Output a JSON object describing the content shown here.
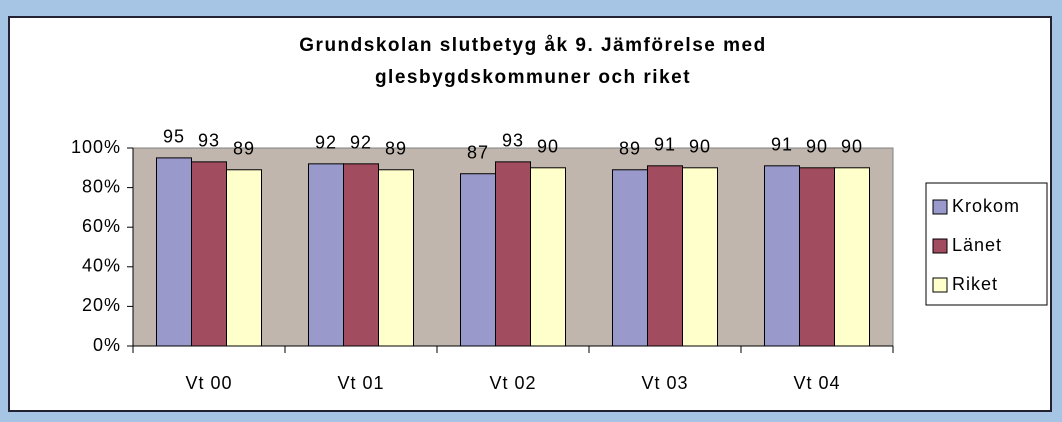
{
  "chart_data": {
    "type": "bar",
    "title_lines": [
      "Grundskolan slutbetyg åk 9. Jämförelse med",
      "glesbygdskommuner och riket"
    ],
    "categories": [
      "Vt 00",
      "Vt 01",
      "Vt 02",
      "Vt 03",
      "Vt 04"
    ],
    "series": [
      {
        "name": "Krokom",
        "color": "#9999cc",
        "values": [
          95,
          92,
          87,
          89,
          91
        ]
      },
      {
        "name": "Länet",
        "color": "#a24d5f",
        "values": [
          93,
          92,
          93,
          91,
          90
        ]
      },
      {
        "name": "Riket",
        "color": "#ffffcc",
        "values": [
          89,
          89,
          90,
          90,
          90
        ]
      }
    ],
    "ylim": [
      0,
      100
    ],
    "yticks": [
      {
        "value": 0,
        "label": "0%"
      },
      {
        "value": 20,
        "label": "20%"
      },
      {
        "value": 40,
        "label": "40%"
      },
      {
        "value": 60,
        "label": "60%"
      },
      {
        "value": 80,
        "label": "80%"
      },
      {
        "value": 100,
        "label": "100%"
      }
    ],
    "legend": "right",
    "plot_background": "#c0b6ae"
  }
}
